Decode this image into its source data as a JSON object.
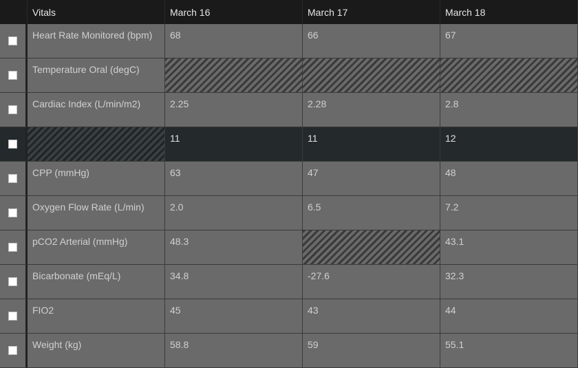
{
  "header": {
    "vitals_label": "Vitals",
    "dates": [
      "March 16",
      "March 17",
      "March 18"
    ]
  },
  "rows": [
    {
      "label": "Heart Rate Monitored (bpm)",
      "values": [
        "68",
        "66",
        "67"
      ]
    },
    {
      "label": "Temperature Oral (degC)",
      "values": [
        "",
        "",
        ""
      ]
    },
    {
      "label": "Cardiac Index (L/min/m2)",
      "values": [
        "2.25",
        "2.28",
        "2.8"
      ]
    },
    {
      "label": "",
      "values": [
        "11",
        "11",
        "12"
      ]
    },
    {
      "label": "CPP (mmHg)",
      "values": [
        "63",
        "47",
        "48"
      ]
    },
    {
      "label": "Oxygen Flow Rate (L/min)",
      "values": [
        "2.0",
        "6.5",
        "7.2"
      ]
    },
    {
      "label": "pCO2 Arterial (mmHg)",
      "values": [
        "48.3",
        "",
        "43.1"
      ]
    },
    {
      "label": "Bicarbonate (mEq/L)",
      "values": [
        "34.8",
        "-27.6",
        "32.3"
      ]
    },
    {
      "label": "FIO2",
      "values": [
        "45",
        "43",
        "44"
      ]
    },
    {
      "label": "Weight (kg)",
      "values": [
        "58.8",
        "59",
        "55.1"
      ]
    }
  ],
  "colors": {
    "header_bg": "#1a1a1a",
    "cell_bg": "#6a6a6a",
    "selected_row_bg": "#24292c",
    "text": "#d0d0d0"
  }
}
